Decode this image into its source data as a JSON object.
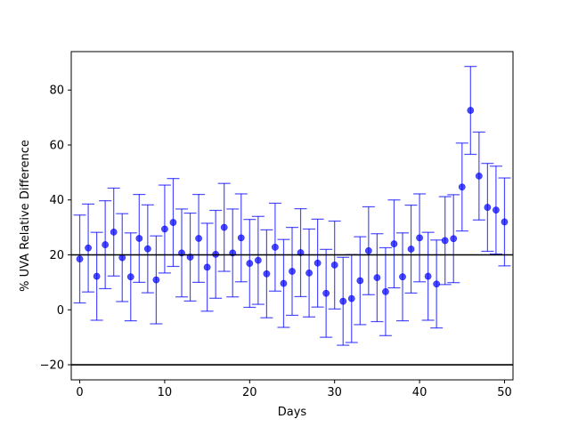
{
  "chart_data": {
    "type": "scatter",
    "title": "",
    "xlabel": "Days",
    "ylabel": "% UVA Relative Difference",
    "xlim": [
      -1,
      51
    ],
    "ylim": [
      -25.5,
      94
    ],
    "xticks": [
      0,
      10,
      20,
      30,
      40,
      50
    ],
    "xtick_labels": [
      "0",
      "10",
      "20",
      "30",
      "40",
      "50"
    ],
    "yticks": [
      -20,
      0,
      20,
      40,
      60,
      80
    ],
    "ytick_labels": [
      "−20",
      "0",
      "20",
      "40",
      "60",
      "80"
    ],
    "grid": false,
    "legend": "none",
    "reference_lines": [
      20,
      -20
    ],
    "colors": {
      "points": "#0000ff",
      "reference": "#000000"
    },
    "series": [
      {
        "x": [
          0,
          1,
          2,
          3,
          4,
          5,
          6,
          7,
          8,
          9,
          10,
          11,
          12,
          13,
          14,
          15,
          16,
          17,
          18,
          19,
          20,
          21,
          22,
          23,
          24,
          25,
          26,
          27,
          28,
          29,
          30,
          31,
          32,
          33,
          34,
          35,
          36,
          37,
          38,
          39,
          40,
          41,
          42,
          43,
          44,
          45,
          46,
          47,
          48,
          49,
          50
        ],
        "y": [
          18.5,
          22.5,
          12.2,
          23.7,
          28.3,
          19.0,
          12.0,
          26.0,
          22.2,
          10.9,
          29.4,
          31.8,
          20.7,
          19.2,
          26.0,
          15.5,
          20.2,
          30.0,
          20.7,
          26.2,
          16.9,
          18.0,
          13.1,
          22.8,
          9.6,
          14.0,
          20.8,
          13.4,
          17.0,
          6.0,
          16.3,
          3.1,
          4.1,
          10.6,
          21.5,
          11.7,
          6.6,
          24.0,
          12.0,
          22.1,
          26.2,
          12.2,
          9.4,
          25.2,
          25.9,
          44.7,
          72.6,
          48.7,
          37.3,
          36.3,
          32.0
        ],
        "err": [
          16,
          16,
          16,
          16,
          16,
          16,
          16,
          16,
          16,
          16,
          16,
          16,
          16,
          16,
          16,
          16,
          16,
          16,
          16,
          16,
          16,
          16,
          16,
          16,
          16,
          16,
          16,
          16,
          16,
          16,
          16,
          16,
          16,
          16,
          16,
          16,
          16,
          16,
          16,
          16,
          16,
          16,
          16,
          16,
          16,
          16,
          16,
          16,
          16,
          16,
          16
        ]
      }
    ]
  }
}
